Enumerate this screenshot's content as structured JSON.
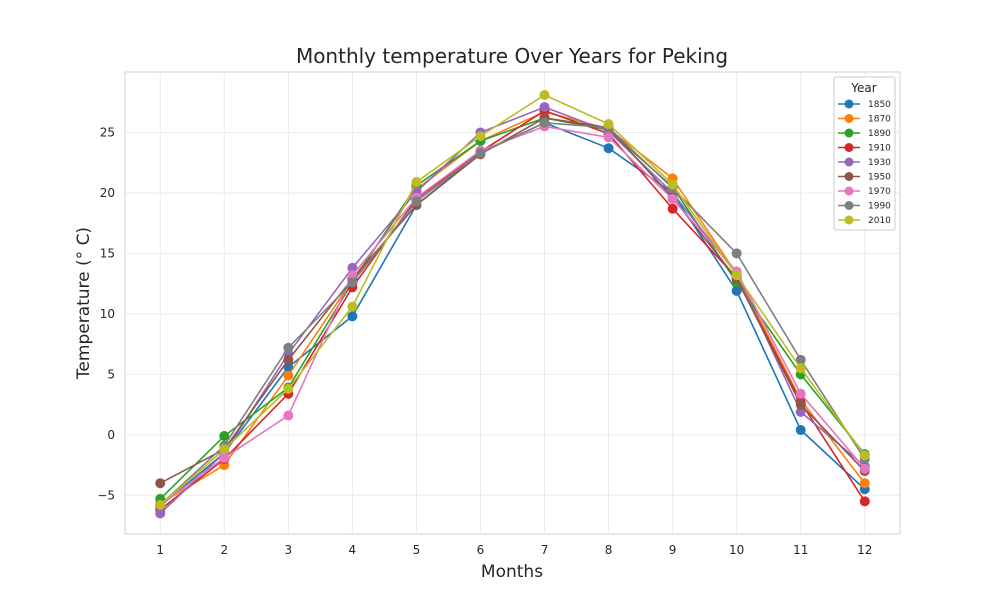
{
  "chart_data": {
    "type": "line",
    "title": "Monthly temperature Over Years for Peking",
    "xlabel": "Months",
    "ylabel": "Temperature (° C)",
    "x": [
      1,
      2,
      3,
      4,
      5,
      6,
      7,
      8,
      9,
      10,
      11,
      12
    ],
    "xlim": [
      0.45,
      12.55
    ],
    "ylim": [
      -8.2,
      30.0
    ],
    "yticks": [
      -5,
      0,
      5,
      10,
      15,
      20,
      25
    ],
    "ytick_labels": [
      "−5",
      "0",
      "5",
      "10",
      "15",
      "20",
      "25"
    ],
    "grid": true,
    "legend": {
      "title": "Year",
      "placement": "top-right"
    },
    "series": [
      {
        "name": "1850",
        "color": "#1f77b4",
        "values": [
          -5.9,
          -1.5,
          5.6,
          9.8,
          19.0,
          23.3,
          25.8,
          23.7,
          20.0,
          11.9,
          0.4,
          -4.5
        ]
      },
      {
        "name": "1870",
        "color": "#ff7f0e",
        "values": [
          -5.7,
          -2.5,
          4.9,
          12.8,
          20.3,
          24.3,
          26.7,
          25.3,
          21.2,
          13.3,
          2.9,
          -4.0
        ]
      },
      {
        "name": "1890",
        "color": "#2ca02c",
        "values": [
          -5.3,
          -0.1,
          3.9,
          12.6,
          20.6,
          24.3,
          26.2,
          25.2,
          20.5,
          12.6,
          5.0,
          -1.6
        ]
      },
      {
        "name": "1910",
        "color": "#d62728",
        "values": [
          -6.2,
          -2.0,
          3.4,
          12.2,
          19.5,
          23.4,
          26.8,
          24.9,
          18.7,
          13.0,
          2.7,
          -5.5
        ]
      },
      {
        "name": "1930",
        "color": "#9467bd",
        "values": [
          -6.5,
          -1.5,
          6.7,
          13.8,
          20.1,
          25.0,
          27.1,
          25.1,
          20.0,
          13.3,
          1.9,
          -2.6
        ]
      },
      {
        "name": "1950",
        "color": "#8c564b",
        "values": [
          -4.0,
          -1.2,
          6.2,
          12.9,
          19.0,
          23.2,
          26.2,
          25.4,
          19.6,
          12.9,
          2.5,
          -3.0
        ]
      },
      {
        "name": "1970",
        "color": "#e377c2",
        "values": [
          -5.8,
          -1.9,
          1.6,
          13.2,
          19.6,
          23.5,
          25.5,
          24.6,
          19.5,
          13.5,
          3.4,
          -2.8
        ]
      },
      {
        "name": "1990",
        "color": "#7f7f7f",
        "values": [
          -5.8,
          -0.9,
          7.2,
          12.6,
          19.3,
          23.3,
          25.8,
          25.4,
          20.4,
          15.0,
          6.2,
          -2.0
        ]
      },
      {
        "name": "2010",
        "color": "#bcbd22",
        "values": [
          -5.8,
          -1.2,
          3.8,
          10.6,
          20.9,
          24.7,
          28.1,
          25.7,
          20.7,
          13.2,
          5.5,
          -1.7
        ]
      }
    ]
  }
}
